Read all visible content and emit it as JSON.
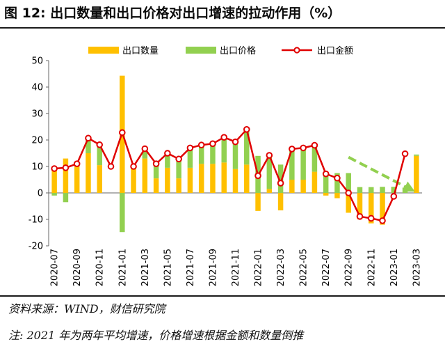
{
  "header": {
    "title": "图 12: 出口数量和出口价格对出口增速的拉动作用（%）"
  },
  "footer": {
    "source": "资料来源：WIND，财信研究院",
    "note": "注: 2021 年为两年平均增速，价格增速根据金额和数量倒推"
  },
  "colors": {
    "quantity": "#FFC000",
    "price": "#92D050",
    "amount": "#E00000",
    "trend": "#92D050"
  },
  "chart_data": {
    "type": "bar",
    "stacked": true,
    "x": [
      "2020-07",
      "2020-08",
      "2020-09",
      "2020-10",
      "2020-11",
      "2020-12",
      "2021-01",
      "2021-02",
      "2021-03",
      "2021-04",
      "2021-05",
      "2021-06",
      "2021-07",
      "2021-08",
      "2021-09",
      "2021-10",
      "2021-11",
      "2021-12",
      "2022-01",
      "2022-02",
      "2022-03",
      "2022-04",
      "2022-05",
      "2022-06",
      "2022-07",
      "2022-08",
      "2022-09",
      "2022-10",
      "2022-11",
      "2022-12",
      "2023-01",
      "2023-02",
      "2023-03"
    ],
    "tick_labels": [
      "2020-07",
      "2020-09",
      "2020-11",
      "2021-01",
      "2021-03",
      "2021-05",
      "2021-07",
      "2021-09",
      "2021-11",
      "2022-01",
      "2022-03",
      "2022-05",
      "2022-07",
      "2022-09",
      "2022-11",
      "2023-01",
      "2023-03"
    ],
    "series": [
      {
        "name": "出口数量",
        "kind": "bar",
        "values": [
          10,
          13,
          10,
          15,
          10.5,
          null,
          44.3,
          9,
          13,
          5.5,
          9.5,
          5.5,
          9.5,
          11,
          11,
          11.5,
          9,
          10.7,
          -6.8,
          1.5,
          -6.6,
          5,
          5,
          8,
          -1,
          -2,
          -7.5,
          -10,
          -11.5,
          -12,
          null,
          null,
          14
        ]
      },
      {
        "name": "出口价格",
        "kind": "bar",
        "values": [
          -1,
          -3.5,
          1,
          5,
          7.5,
          null,
          -14.8,
          1,
          3.5,
          5.5,
          5,
          7,
          7.5,
          7.5,
          8,
          9,
          10.5,
          12.7,
          14,
          12.5,
          10.7,
          11.7,
          12,
          10.5,
          7.8,
          7.5,
          7.5,
          2.2,
          2.2,
          2.3,
          2.3,
          2,
          0.5
        ]
      },
      {
        "name": "出口金额",
        "kind": "line",
        "values": [
          9.2,
          9.5,
          11,
          20.7,
          18.2,
          10,
          22.8,
          10,
          16.7,
          11,
          15,
          12.8,
          17,
          18.1,
          18.6,
          21,
          19.3,
          24,
          6.5,
          14.2,
          3.7,
          16.6,
          17,
          18,
          7.2,
          5.6,
          0,
          -8.9,
          -9.6,
          -10.5,
          -1.3,
          14.8,
          null
        ]
      }
    ],
    "trend_arrow": {
      "from": {
        "x": "2022-09",
        "y": 13.5
      },
      "to": {
        "x": "2023-03",
        "y": 0.5
      }
    },
    "ylim": [
      -20,
      50
    ],
    "yticks": [
      -20,
      -10,
      0,
      10,
      20,
      30,
      40,
      50
    ],
    "legend": {
      "position": "top",
      "entries": [
        "出口数量",
        "出口价格",
        "出口金额"
      ]
    },
    "grid": false
  }
}
